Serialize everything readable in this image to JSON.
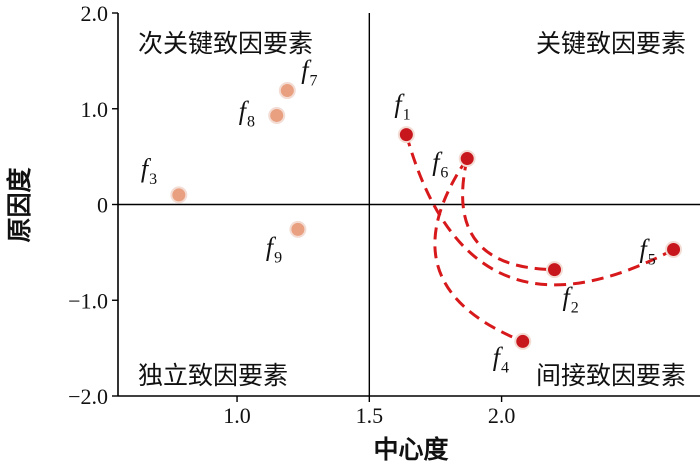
{
  "chart_data": {
    "type": "scatter",
    "xlabel": "中心度",
    "ylabel": "原因度",
    "xlim": [
      0.55,
      2.75
    ],
    "ylim": [
      -2.0,
      2.0
    ],
    "xticks": [
      {
        "value": 1.0,
        "label": "1.0"
      },
      {
        "value": 1.5,
        "label": "1.5"
      },
      {
        "value": 2.0,
        "label": "2.0"
      }
    ],
    "yticks": [
      {
        "value": 2.0,
        "label": "2.0"
      },
      {
        "value": 1.0,
        "label": "1.0"
      },
      {
        "value": 0,
        "label": "0"
      },
      {
        "value": -1.0,
        "label": "−1.0"
      },
      {
        "value": -2.0,
        "label": "−2.0"
      }
    ],
    "divider_x": 1.5,
    "divider_y": 0,
    "quadrants": {
      "top_left": "次关键致因要素",
      "top_right": "关键致因要素",
      "bottom_left": "独立致因要素",
      "bottom_right": "间接致因要素"
    },
    "points": [
      {
        "id": "f1",
        "base": "f",
        "sub": "1",
        "x": 1.64,
        "y": 0.73,
        "group": "key"
      },
      {
        "id": "f2",
        "base": "f",
        "sub": "2",
        "x": 2.2,
        "y": -0.68,
        "group": "key"
      },
      {
        "id": "f3",
        "base": "f",
        "sub": "3",
        "x": 0.78,
        "y": 0.1,
        "group": "minor"
      },
      {
        "id": "f4",
        "base": "f",
        "sub": "4",
        "x": 2.08,
        "y": -1.43,
        "group": "key"
      },
      {
        "id": "f5",
        "base": "f",
        "sub": "5",
        "x": 2.65,
        "y": -0.47,
        "group": "key"
      },
      {
        "id": "f6",
        "base": "f",
        "sub": "6",
        "x": 1.87,
        "y": 0.48,
        "group": "key"
      },
      {
        "id": "f7",
        "base": "f",
        "sub": "7",
        "x": 1.19,
        "y": 1.19,
        "group": "minor"
      },
      {
        "id": "f8",
        "base": "f",
        "sub": "8",
        "x": 1.15,
        "y": 0.93,
        "group": "minor"
      },
      {
        "id": "f9",
        "base": "f",
        "sub": "9",
        "x": 1.23,
        "y": -0.26,
        "group": "minor"
      }
    ],
    "links": [
      {
        "from": "f1",
        "to": "f5"
      },
      {
        "from": "f6",
        "to": "f2"
      },
      {
        "from": "f6",
        "to": "f4"
      }
    ],
    "colors": {
      "key_fill": "#c8161d",
      "minor_fill": "#e8a080",
      "point_edge": "#f3dcd4",
      "link": "#d7191c"
    }
  }
}
